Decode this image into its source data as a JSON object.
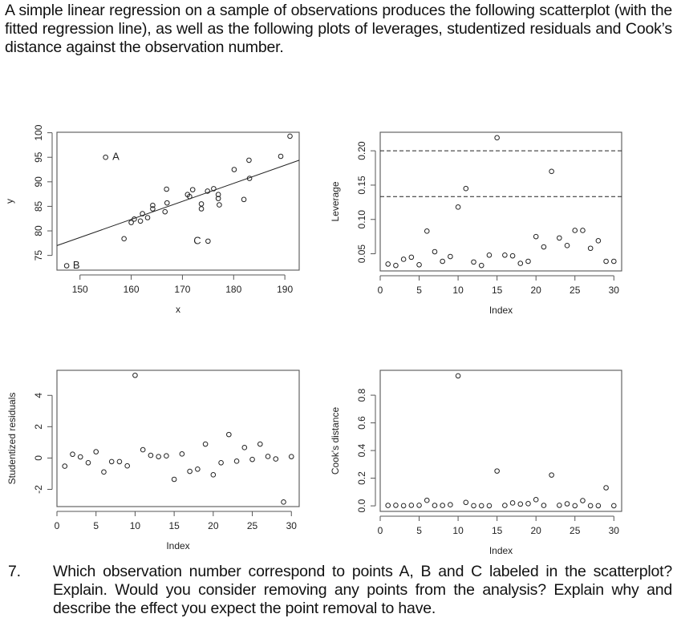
{
  "intro_text": "A simple linear regression on a sample of observations produces the following scatterplot (with the fitted regression line), as well as the following plots of leverages, studentized residuals and Cook’s distance against the observation number.",
  "question": {
    "number": "7.",
    "text": "Which observation number correspond to points A, B and C labeled in the scatterplot? Explain. Would you consider removing any points from the analysis? Explain why and describe the effect you expect the point removal to have."
  },
  "chart_data": [
    {
      "id": "scatter",
      "type": "scatter",
      "title": "",
      "xlabel": "x",
      "ylabel": "y",
      "xlim": [
        145.5,
        192.8
      ],
      "ylim": [
        72,
        100.1
      ],
      "xticks": [
        150,
        160,
        170,
        180,
        190
      ],
      "yticks": [
        75,
        80,
        85,
        90,
        95,
        100
      ],
      "grid": false,
      "points": [
        {
          "x": 147.4,
          "y": 72.9,
          "label": "B"
        },
        {
          "x": 155.0,
          "y": 95.0,
          "label": "A"
        },
        {
          "x": 158.6,
          "y": 78.4
        },
        {
          "x": 160.0,
          "y": 81.7
        },
        {
          "x": 160.6,
          "y": 82.4
        },
        {
          "x": 161.8,
          "y": 82.0
        },
        {
          "x": 162.2,
          "y": 83.5
        },
        {
          "x": 163.2,
          "y": 82.7
        },
        {
          "x": 164.2,
          "y": 85.2
        },
        {
          "x": 164.2,
          "y": 84.5
        },
        {
          "x": 166.6,
          "y": 83.9
        },
        {
          "x": 166.9,
          "y": 88.5
        },
        {
          "x": 167.0,
          "y": 85.7
        },
        {
          "x": 171.0,
          "y": 87.4
        },
        {
          "x": 171.4,
          "y": 87.0
        },
        {
          "x": 172.0,
          "y": 88.4
        },
        {
          "x": 173.7,
          "y": 85.5
        },
        {
          "x": 173.7,
          "y": 84.5
        },
        {
          "x": 174.9,
          "y": 88.1
        },
        {
          "x": 175.0,
          "y": 77.9,
          "label": "C"
        },
        {
          "x": 176.1,
          "y": 88.6
        },
        {
          "x": 177.0,
          "y": 87.4
        },
        {
          "x": 177.0,
          "y": 86.6
        },
        {
          "x": 177.2,
          "y": 85.3
        },
        {
          "x": 180.1,
          "y": 92.5
        },
        {
          "x": 182.0,
          "y": 86.4
        },
        {
          "x": 183.0,
          "y": 94.4
        },
        {
          "x": 183.1,
          "y": 90.7
        },
        {
          "x": 189.2,
          "y": 95.2
        },
        {
          "x": 191.0,
          "y": 99.3
        }
      ],
      "regression_line": {
        "x": [
          145.5,
          192.8
        ],
        "y": [
          77.0,
          94.4
        ]
      },
      "annotations": [
        {
          "text": "A",
          "x": 157.0,
          "y": 95.0
        },
        {
          "text": "B",
          "x": 149.3,
          "y": 72.9
        },
        {
          "text": "C",
          "x": 172.9,
          "y": 77.9
        }
      ]
    },
    {
      "id": "leverage",
      "type": "scatter",
      "xlabel": "Index",
      "ylabel": "Leverage",
      "xlim": [
        0,
        31
      ],
      "ylim": [
        0.025,
        0.227
      ],
      "xticks": [
        0,
        5,
        10,
        15,
        20,
        25,
        30
      ],
      "yticks": [
        0.05,
        0.1,
        0.15,
        0.2
      ],
      "reference_lines": [
        0.2,
        0.1333
      ],
      "x": [
        1,
        2,
        3,
        4,
        5,
        6,
        7,
        8,
        9,
        10,
        11,
        12,
        13,
        14,
        15,
        16,
        17,
        18,
        19,
        20,
        21,
        22,
        23,
        24,
        25,
        26,
        27,
        28,
        29,
        30
      ],
      "values": [
        0.035,
        0.033,
        0.042,
        0.045,
        0.034,
        0.083,
        0.053,
        0.039,
        0.046,
        0.118,
        0.145,
        0.038,
        0.033,
        0.048,
        0.219,
        0.048,
        0.047,
        0.036,
        0.039,
        0.075,
        0.06,
        0.17,
        0.073,
        0.062,
        0.084,
        0.084,
        0.058,
        0.069,
        0.039,
        0.039
      ]
    },
    {
      "id": "studentized_residuals",
      "type": "scatter",
      "xlabel": "Index",
      "ylabel": "Studentized residuals",
      "xlim": [
        0,
        31
      ],
      "ylim": [
        -3.1,
        5.6
      ],
      "xticks": [
        0,
        5,
        10,
        15,
        20,
        25,
        30
      ],
      "yticks": [
        -2,
        0,
        2,
        4
      ],
      "x": [
        1,
        2,
        3,
        4,
        5,
        6,
        7,
        8,
        9,
        10,
        11,
        12,
        13,
        14,
        15,
        16,
        17,
        18,
        19,
        20,
        21,
        22,
        23,
        24,
        25,
        26,
        27,
        28,
        29,
        30
      ],
      "values": [
        -0.52,
        0.24,
        0.07,
        -0.3,
        0.4,
        -0.89,
        -0.23,
        -0.23,
        -0.5,
        5.28,
        0.53,
        0.17,
        0.09,
        0.14,
        -1.36,
        0.26,
        -0.85,
        -0.71,
        0.89,
        -1.07,
        -0.3,
        1.5,
        -0.2,
        0.67,
        -0.09,
        0.89,
        0.1,
        -0.06,
        -2.81,
        0.09
      ]
    },
    {
      "id": "cooks_distance",
      "type": "scatter",
      "xlabel": "Index",
      "ylabel": "Cook's distance",
      "xlim": [
        0,
        31
      ],
      "ylim": [
        -0.04,
        0.98
      ],
      "xticks": [
        0,
        5,
        10,
        15,
        20,
        25,
        30
      ],
      "yticks": [
        0.0,
        0.2,
        0.4,
        0.6,
        0.8
      ],
      "x": [
        1,
        2,
        3,
        4,
        5,
        6,
        7,
        8,
        9,
        10,
        11,
        12,
        13,
        14,
        15,
        16,
        17,
        18,
        19,
        20,
        21,
        22,
        23,
        24,
        25,
        26,
        27,
        28,
        29,
        30
      ],
      "values": [
        0.003,
        0.004,
        0.001,
        0.004,
        0.004,
        0.04,
        0.003,
        0.003,
        0.008,
        0.94,
        0.025,
        0.001,
        0.001,
        0.001,
        0.252,
        0.003,
        0.021,
        0.013,
        0.016,
        0.045,
        0.003,
        0.223,
        0.004,
        0.015,
        0.001,
        0.038,
        0.001,
        0.001,
        0.131,
        0.001
      ]
    }
  ]
}
